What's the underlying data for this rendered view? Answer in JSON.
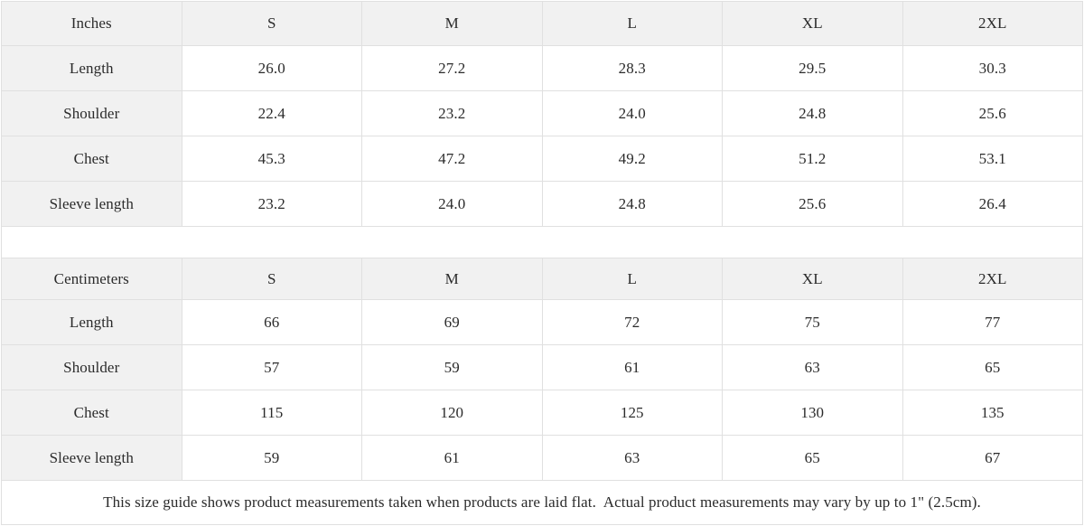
{
  "colors": {
    "header_background": "#f1f1f1",
    "border": "#e0e0e0",
    "text": "#2b2b2b",
    "cell_background": "#ffffff"
  },
  "tables": [
    {
      "unit_header": "Inches",
      "size_headers": [
        "S",
        "M",
        "L",
        "XL",
        "2XL"
      ],
      "rows": [
        {
          "label": "Length",
          "values": [
            "26.0",
            "27.2",
            "28.3",
            "29.5",
            "30.3"
          ]
        },
        {
          "label": "Shoulder",
          "values": [
            "22.4",
            "23.2",
            "24.0",
            "24.8",
            "25.6"
          ]
        },
        {
          "label": "Chest",
          "values": [
            "45.3",
            "47.2",
            "49.2",
            "51.2",
            "53.1"
          ]
        },
        {
          "label": "Sleeve length",
          "values": [
            "23.2",
            "24.0",
            "24.8",
            "25.6",
            "26.4"
          ]
        }
      ]
    },
    {
      "unit_header": "Centimeters",
      "size_headers": [
        "S",
        "M",
        "L",
        "XL",
        "2XL"
      ],
      "rows": [
        {
          "label": "Length",
          "values": [
            "66",
            "69",
            "72",
            "75",
            "77"
          ]
        },
        {
          "label": "Shoulder",
          "values": [
            "57",
            "59",
            "61",
            "63",
            "65"
          ]
        },
        {
          "label": "Chest",
          "values": [
            "115",
            "120",
            "125",
            "130",
            "135"
          ]
        },
        {
          "label": "Sleeve length",
          "values": [
            "59",
            "61",
            "63",
            "65",
            "67"
          ]
        }
      ]
    }
  ],
  "footer_note": "This size guide shows product measurements taken when products are laid flat.  Actual product measurements may vary by up to 1\" (2.5cm).",
  "chart_data": [
    {
      "type": "table",
      "title": "Size guide (Inches)",
      "columns": [
        "Inches",
        "S",
        "M",
        "L",
        "XL",
        "2XL"
      ],
      "rows": [
        [
          "Length",
          26.0,
          27.2,
          28.3,
          29.5,
          30.3
        ],
        [
          "Shoulder",
          22.4,
          23.2,
          24.0,
          24.8,
          25.6
        ],
        [
          "Chest",
          45.3,
          47.2,
          49.2,
          51.2,
          53.1
        ],
        [
          "Sleeve length",
          23.2,
          24.0,
          24.8,
          25.6,
          26.4
        ]
      ]
    },
    {
      "type": "table",
      "title": "Size guide (Centimeters)",
      "columns": [
        "Centimeters",
        "S",
        "M",
        "L",
        "XL",
        "2XL"
      ],
      "rows": [
        [
          "Length",
          66,
          69,
          72,
          75,
          77
        ],
        [
          "Shoulder",
          57,
          59,
          61,
          63,
          65
        ],
        [
          "Chest",
          115,
          120,
          125,
          130,
          135
        ],
        [
          "Sleeve length",
          59,
          61,
          63,
          65,
          67
        ]
      ]
    }
  ]
}
